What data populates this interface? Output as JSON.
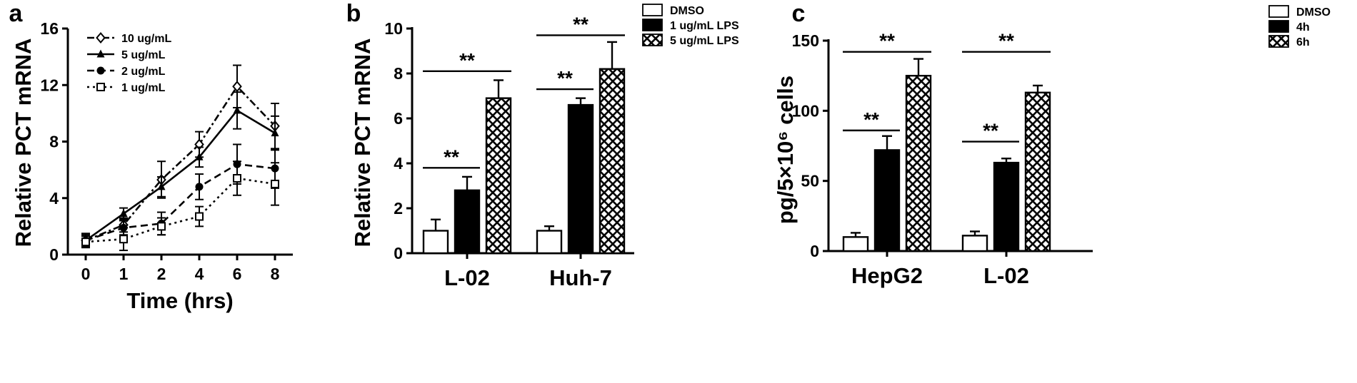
{
  "chart_data": [
    {
      "panel": "a",
      "type": "line",
      "xlabel": "Time (hrs)",
      "ylabel": "Relative PCT mRNA",
      "x": [
        "0",
        "1",
        "2",
        "4",
        "6",
        "8"
      ],
      "ylim": [
        0,
        16
      ],
      "yticks": [
        0,
        4,
        8,
        12,
        16
      ],
      "grid": false,
      "legend_position": "top-left",
      "series": [
        {
          "name": "10 ug/mL",
          "marker": "diamond-open",
          "dash": "dashdot",
          "values": [
            1.0,
            2.1,
            5.3,
            7.8,
            11.9,
            9.1
          ],
          "errors": [
            0.5,
            0.5,
            1.3,
            0.9,
            1.5,
            1.6
          ]
        },
        {
          "name": "5 ug/mL",
          "marker": "triangle-filled",
          "dash": "solid",
          "values": [
            1.0,
            2.9,
            4.8,
            6.9,
            10.2,
            8.6
          ],
          "errors": [
            0.4,
            0.4,
            0.7,
            0.7,
            1.3,
            1.2
          ]
        },
        {
          "name": "2 ug/mL",
          "marker": "circle-filled",
          "dash": "dashed",
          "values": [
            1.0,
            1.9,
            2.2,
            4.8,
            6.4,
            6.1
          ],
          "errors": [
            0.4,
            0.5,
            0.8,
            0.9,
            1.4,
            1.4
          ]
        },
        {
          "name": "1 ug/mL",
          "marker": "square-open",
          "dash": "dotted",
          "values": [
            0.9,
            1.1,
            2.0,
            2.7,
            5.4,
            5.0
          ],
          "errors": [
            0.4,
            0.8,
            0.6,
            0.7,
            1.2,
            1.5
          ]
        }
      ]
    },
    {
      "panel": "b",
      "type": "bar",
      "ylabel": "Relative PCT mRNA",
      "categories": [
        "L-02",
        "Huh-7"
      ],
      "ylim": [
        0,
        10
      ],
      "yticks": [
        0,
        2,
        4,
        6,
        8,
        10
      ],
      "grid": false,
      "legend_position": "top-right",
      "series": [
        {
          "name": "DMSO",
          "fill": "white",
          "values": [
            1.0,
            1.0
          ],
          "errors": [
            0.5,
            0.2
          ]
        },
        {
          "name": "1 ug/mL LPS",
          "fill": "black",
          "values": [
            2.8,
            6.6
          ],
          "errors": [
            0.6,
            0.3
          ]
        },
        {
          "name": "5 ug/mL LPS",
          "fill": "crosshatch",
          "values": [
            6.9,
            8.2
          ],
          "errors": [
            0.8,
            1.2
          ]
        }
      ],
      "significance": [
        {
          "category": 0,
          "from_series": 0,
          "to_series": 1,
          "level": 3.8,
          "label": "**"
        },
        {
          "category": 0,
          "from_series": 0,
          "to_series": 2,
          "level": 8.1,
          "label": "**"
        },
        {
          "category": 1,
          "from_series": 0,
          "to_series": 1,
          "level": 7.3,
          "label": "**"
        },
        {
          "category": 1,
          "from_series": 0,
          "to_series": 2,
          "level": 9.7,
          "label": "**"
        }
      ]
    },
    {
      "panel": "c",
      "type": "bar",
      "ylabel": "pg/5×10⁶ cells",
      "categories": [
        "HepG2",
        "L-02"
      ],
      "ylim": [
        0,
        150
      ],
      "yticks": [
        0,
        50,
        100,
        150
      ],
      "grid": false,
      "legend_position": "top-right",
      "series": [
        {
          "name": "DMSO",
          "fill": "white",
          "values": [
            10,
            11
          ],
          "errors": [
            3,
            3
          ]
        },
        {
          "name": "4h",
          "fill": "black",
          "values": [
            72,
            63
          ],
          "errors": [
            10,
            3
          ]
        },
        {
          "name": "6h",
          "fill": "crosshatch",
          "values": [
            125,
            113
          ],
          "errors": [
            12,
            5
          ]
        }
      ],
      "significance": [
        {
          "category": 0,
          "from_series": 0,
          "to_series": 1,
          "level": 86,
          "label": "**"
        },
        {
          "category": 0,
          "from_series": 0,
          "to_series": 2,
          "level": 142,
          "label": "**"
        },
        {
          "category": 1,
          "from_series": 0,
          "to_series": 1,
          "level": 78,
          "label": "**"
        },
        {
          "category": 1,
          "from_series": 0,
          "to_series": 2,
          "level": 142,
          "label": "**"
        }
      ]
    }
  ]
}
